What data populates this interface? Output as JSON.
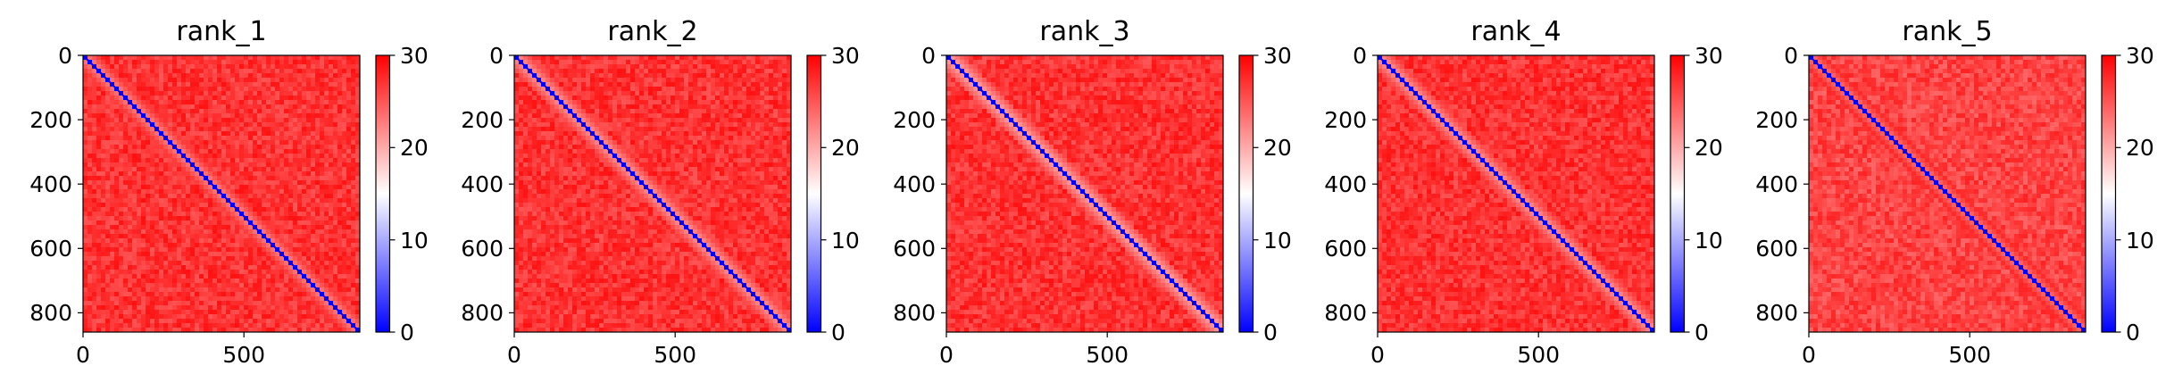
{
  "chart_data": [
    {
      "type": "heatmap",
      "title": "rank_1",
      "matrix_size": 860,
      "xlim": [
        0,
        860
      ],
      "ylim": [
        860,
        0
      ],
      "xticks": [
        {
          "value": 0,
          "label": "0"
        },
        {
          "value": 500,
          "label": "500"
        }
      ],
      "yticks": [
        {
          "value": 0,
          "label": "0"
        },
        {
          "value": 200,
          "label": "200"
        },
        {
          "value": 400,
          "label": "400"
        },
        {
          "value": 600,
          "label": "600"
        },
        {
          "value": 800,
          "label": "800"
        }
      ],
      "colorbar": {
        "vmin": 0,
        "vmax": 30,
        "ticks": [
          {
            "value": 0,
            "label": "0"
          },
          {
            "value": 10,
            "label": "10"
          },
          {
            "value": 20,
            "label": "20"
          },
          {
            "value": 30,
            "label": "30"
          }
        ]
      },
      "colormap": [
        "#0000ff",
        "#ffffff",
        "#ff0000"
      ],
      "pattern": {
        "diagonal": 0,
        "near_diagonal": 22,
        "background": 29
      }
    },
    {
      "type": "heatmap",
      "title": "rank_2",
      "matrix_size": 860,
      "xlim": [
        0,
        860
      ],
      "ylim": [
        860,
        0
      ],
      "xticks": [
        {
          "value": 0,
          "label": "0"
        },
        {
          "value": 500,
          "label": "500"
        }
      ],
      "yticks": [
        {
          "value": 0,
          "label": "0"
        },
        {
          "value": 200,
          "label": "200"
        },
        {
          "value": 400,
          "label": "400"
        },
        {
          "value": 600,
          "label": "600"
        },
        {
          "value": 800,
          "label": "800"
        }
      ],
      "colorbar": {
        "vmin": 0,
        "vmax": 30,
        "ticks": [
          {
            "value": 0,
            "label": "0"
          },
          {
            "value": 10,
            "label": "10"
          },
          {
            "value": 20,
            "label": "20"
          },
          {
            "value": 30,
            "label": "30"
          }
        ]
      },
      "colormap": [
        "#0000ff",
        "#ffffff",
        "#ff0000"
      ],
      "pattern": {
        "diagonal": 0,
        "near_diagonal": 21,
        "background": 29
      }
    },
    {
      "type": "heatmap",
      "title": "rank_3",
      "matrix_size": 860,
      "xlim": [
        0,
        860
      ],
      "ylim": [
        860,
        0
      ],
      "xticks": [
        {
          "value": 0,
          "label": "0"
        },
        {
          "value": 500,
          "label": "500"
        }
      ],
      "yticks": [
        {
          "value": 0,
          "label": "0"
        },
        {
          "value": 200,
          "label": "200"
        },
        {
          "value": 400,
          "label": "400"
        },
        {
          "value": 600,
          "label": "600"
        },
        {
          "value": 800,
          "label": "800"
        }
      ],
      "colorbar": {
        "vmin": 0,
        "vmax": 30,
        "ticks": [
          {
            "value": 0,
            "label": "0"
          },
          {
            "value": 10,
            "label": "10"
          },
          {
            "value": 20,
            "label": "20"
          },
          {
            "value": 30,
            "label": "30"
          }
        ]
      },
      "colormap": [
        "#0000ff",
        "#ffffff",
        "#ff0000"
      ],
      "pattern": {
        "diagonal": 0,
        "near_diagonal": 20,
        "background": 29
      }
    },
    {
      "type": "heatmap",
      "title": "rank_4",
      "matrix_size": 860,
      "xlim": [
        0,
        860
      ],
      "ylim": [
        860,
        0
      ],
      "xticks": [
        {
          "value": 0,
          "label": "0"
        },
        {
          "value": 500,
          "label": "500"
        }
      ],
      "yticks": [
        {
          "value": 0,
          "label": "0"
        },
        {
          "value": 200,
          "label": "200"
        },
        {
          "value": 400,
          "label": "400"
        },
        {
          "value": 600,
          "label": "600"
        },
        {
          "value": 800,
          "label": "800"
        }
      ],
      "colorbar": {
        "vmin": 0,
        "vmax": 30,
        "ticks": [
          {
            "value": 0,
            "label": "0"
          },
          {
            "value": 10,
            "label": "10"
          },
          {
            "value": 20,
            "label": "20"
          },
          {
            "value": 30,
            "label": "30"
          }
        ]
      },
      "colormap": [
        "#0000ff",
        "#ffffff",
        "#ff0000"
      ],
      "pattern": {
        "diagonal": 0,
        "near_diagonal": 21,
        "background": 29
      }
    },
    {
      "type": "heatmap",
      "title": "rank_5",
      "matrix_size": 860,
      "xlim": [
        0,
        860
      ],
      "ylim": [
        860,
        0
      ],
      "xticks": [
        {
          "value": 0,
          "label": "0"
        },
        {
          "value": 500,
          "label": "500"
        }
      ],
      "yticks": [
        {
          "value": 0,
          "label": "0"
        },
        {
          "value": 200,
          "label": "200"
        },
        {
          "value": 400,
          "label": "400"
        },
        {
          "value": 600,
          "label": "600"
        },
        {
          "value": 800,
          "label": "800"
        }
      ],
      "colorbar": {
        "vmin": 0,
        "vmax": 30,
        "ticks": [
          {
            "value": 0,
            "label": "0"
          },
          {
            "value": 10,
            "label": "10"
          },
          {
            "value": 20,
            "label": "20"
          },
          {
            "value": 30,
            "label": "30"
          }
        ]
      },
      "colormap": [
        "#0000ff",
        "#ffffff",
        "#ff0000"
      ],
      "pattern": {
        "diagonal": 0,
        "near_diagonal": 23,
        "background": 28
      }
    }
  ]
}
